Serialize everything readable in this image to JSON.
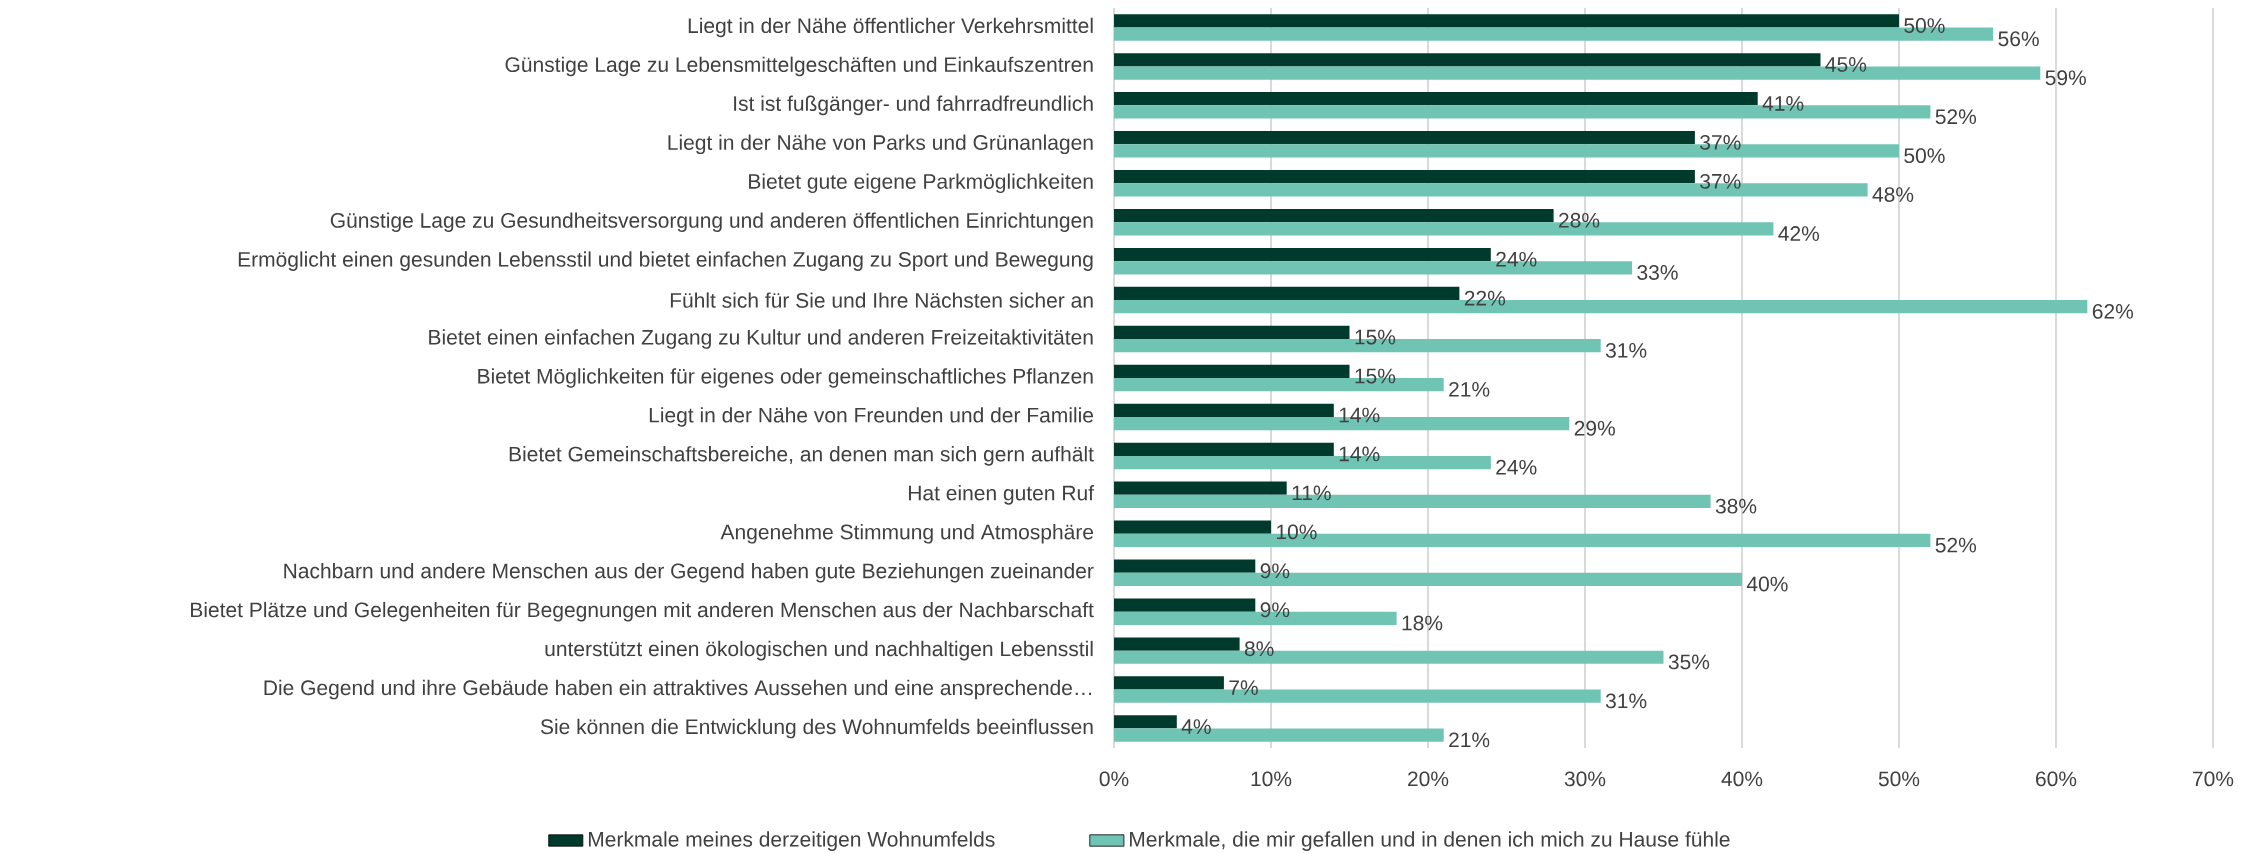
{
  "chart_data": {
    "type": "bar",
    "orientation": "horizontal",
    "categories": [
      "Liegt in der Nähe öffentlicher Verkehrsmittel",
      "Günstige Lage zu Lebensmittelgeschäften und Einkaufszentren",
      "Ist ist fußgänger- und fahrradfreundlich",
      "Liegt in der Nähe von Parks und Grünanlagen",
      "Bietet gute eigene Parkmöglichkeiten",
      "Günstige Lage zu Gesundheitsversorgung und anderen öffentlichen Einrichtungen",
      "Ermöglicht einen gesunden Lebensstil und bietet einfachen Zugang zu Sport und Bewegung",
      "Fühlt sich für Sie und Ihre Nächsten sicher an",
      "Bietet einen einfachen Zugang zu Kultur und anderen Freizeitaktivitäten",
      "Bietet Möglichkeiten für eigenes oder gemeinschaftliches Pflanzen",
      "Liegt in der Nähe von Freunden und der Familie",
      "Bietet Gemeinschaftsbereiche, an denen man sich gern aufhält",
      "Hat einen guten Ruf",
      "Angenehme Stimmung und Atmosphäre",
      "Nachbarn und andere Menschen aus der Gegend haben gute Beziehungen zueinander",
      "Bietet Plätze und Gelegenheiten für Begegnungen mit anderen Menschen aus der Nachbarschaft",
      "unterstützt einen ökologischen und nachhaltigen Lebensstil",
      "Die Gegend und ihre Gebäude haben ein attraktives Aussehen und eine ansprechende…",
      "Sie können die Entwicklung des Wohnumfelds beeinflussen"
    ],
    "series": [
      {
        "name": "Merkmale meines derzeitigen Wohnumfelds",
        "color": "#003a2c",
        "values": [
          50,
          45,
          41,
          37,
          37,
          28,
          24,
          22,
          15,
          15,
          14,
          14,
          11,
          10,
          9,
          9,
          8,
          7,
          4
        ],
        "value_labels": [
          "50%",
          "45%",
          "41%",
          "37%",
          "37%",
          "28%",
          "24%",
          "22%",
          "15%",
          "15%",
          "14%",
          "14%",
          "11%",
          "10%",
          "9%",
          "9%",
          "8%",
          "7%",
          "4%"
        ]
      },
      {
        "name": "Merkmale, die mir gefallen und in denen ich mich zu Hause fühle",
        "color": "#70c4b3",
        "values": [
          56,
          59,
          52,
          50,
          48,
          42,
          33,
          62,
          31,
          21,
          29,
          24,
          38,
          52,
          40,
          18,
          35,
          31,
          21
        ],
        "value_labels": [
          "56%",
          "59%",
          "52%",
          "50%",
          "48%",
          "42%",
          "33%",
          "62%",
          "31%",
          "21%",
          "29%",
          "24%",
          "38%",
          "52%",
          "40%",
          "18%",
          "35%",
          "31%",
          "21%"
        ]
      }
    ],
    "xlim": [
      0,
      70
    ],
    "xticks": [
      {
        "value": 0,
        "label": "0%"
      },
      {
        "value": 10,
        "label": "10%"
      },
      {
        "value": 20,
        "label": "20%"
      },
      {
        "value": 30,
        "label": "30%"
      },
      {
        "value": 40,
        "label": "40%"
      },
      {
        "value": 50,
        "label": "50%"
      },
      {
        "value": 60,
        "label": "60%"
      },
      {
        "value": 70,
        "label": "70%"
      }
    ],
    "grid": "x",
    "legend": "bottom"
  }
}
